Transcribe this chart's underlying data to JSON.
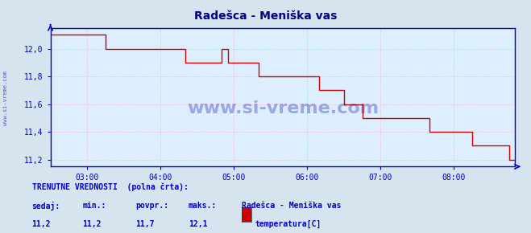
{
  "title": "Radešca - Meniška vas",
  "title_color": "#000080",
  "bg_color": "#d6e4f0",
  "plot_bg_color": "#ddeeff",
  "line_color": "#cc0000",
  "grid_color": "#ffaaaa",
  "grid_style": ":",
  "axis_color": "#0000cc",
  "tick_color": "#0000cc",
  "ylim_min": 11.15,
  "ylim_max": 12.15,
  "ytick_vals": [
    11.2,
    11.4,
    11.6,
    11.8,
    12.0
  ],
  "ytick_labels": [
    "11,2",
    "11,4",
    "11,6",
    "11,8",
    "12,0"
  ],
  "xtick_hours": [
    3,
    4,
    5,
    6,
    7,
    8
  ],
  "xtick_labels": [
    "03:00",
    "04:00",
    "05:00",
    "06:00",
    "07:00",
    "08:00"
  ],
  "start_hour": 2.5,
  "end_hour": 8.833,
  "watermark": "www.si-vreme.com",
  "watermark_color": "#0000aa",
  "left_label": "www.si-vreme.com",
  "footer_line1": "TRENUTNE VREDNOSTI  (polna črta):",
  "footer_col1_label": "sedaj:",
  "footer_col2_label": "min.:",
  "footer_col3_label": "povpr.:",
  "footer_col4_label": "maks.:",
  "footer_col5_label": "Radešca - Meniška vas",
  "footer_val1": "11,2",
  "footer_val2": "11,2",
  "footer_val3": "11,7",
  "footer_val4": "12,1",
  "footer_legend_label": "temperatura[C]",
  "legend_color": "#cc0000",
  "x_hours": [
    2.5,
    2.583,
    2.667,
    2.75,
    2.833,
    2.917,
    3.0,
    3.083,
    3.167,
    3.25,
    3.333,
    3.417,
    3.5,
    3.583,
    3.667,
    3.75,
    3.833,
    3.917,
    4.0,
    4.083,
    4.167,
    4.25,
    4.333,
    4.417,
    4.5,
    4.583,
    4.667,
    4.75,
    4.833,
    4.917,
    5.0,
    5.083,
    5.167,
    5.25,
    5.333,
    5.417,
    5.5,
    5.583,
    5.667,
    5.75,
    5.833,
    5.917,
    6.0,
    6.083,
    6.167,
    6.25,
    6.333,
    6.417,
    6.5,
    6.583,
    6.667,
    6.75,
    6.833,
    6.917,
    7.0,
    7.083,
    7.167,
    7.25,
    7.333,
    7.417,
    7.5,
    7.583,
    7.667,
    7.75,
    7.833,
    7.917,
    8.0,
    8.083,
    8.167,
    8.25,
    8.333,
    8.417,
    8.5,
    8.583,
    8.667,
    8.75,
    8.833
  ],
  "y_data": [
    12.1,
    12.1,
    12.1,
    12.1,
    12.1,
    12.1,
    12.1,
    12.1,
    12.1,
    12.0,
    12.0,
    12.0,
    12.0,
    12.0,
    12.0,
    12.0,
    12.0,
    12.0,
    12.0,
    12.0,
    12.0,
    12.0,
    11.9,
    11.9,
    11.9,
    11.9,
    11.9,
    11.9,
    12.0,
    11.9,
    11.9,
    11.9,
    11.9,
    11.9,
    11.8,
    11.8,
    11.8,
    11.8,
    11.8,
    11.8,
    11.8,
    11.8,
    11.8,
    11.8,
    11.7,
    11.7,
    11.7,
    11.7,
    11.6,
    11.6,
    11.6,
    11.5,
    11.5,
    11.5,
    11.5,
    11.5,
    11.5,
    11.5,
    11.5,
    11.5,
    11.5,
    11.5,
    11.4,
    11.4,
    11.4,
    11.4,
    11.4,
    11.4,
    11.4,
    11.3,
    11.3,
    11.3,
    11.3,
    11.3,
    11.3,
    11.2,
    11.2
  ]
}
